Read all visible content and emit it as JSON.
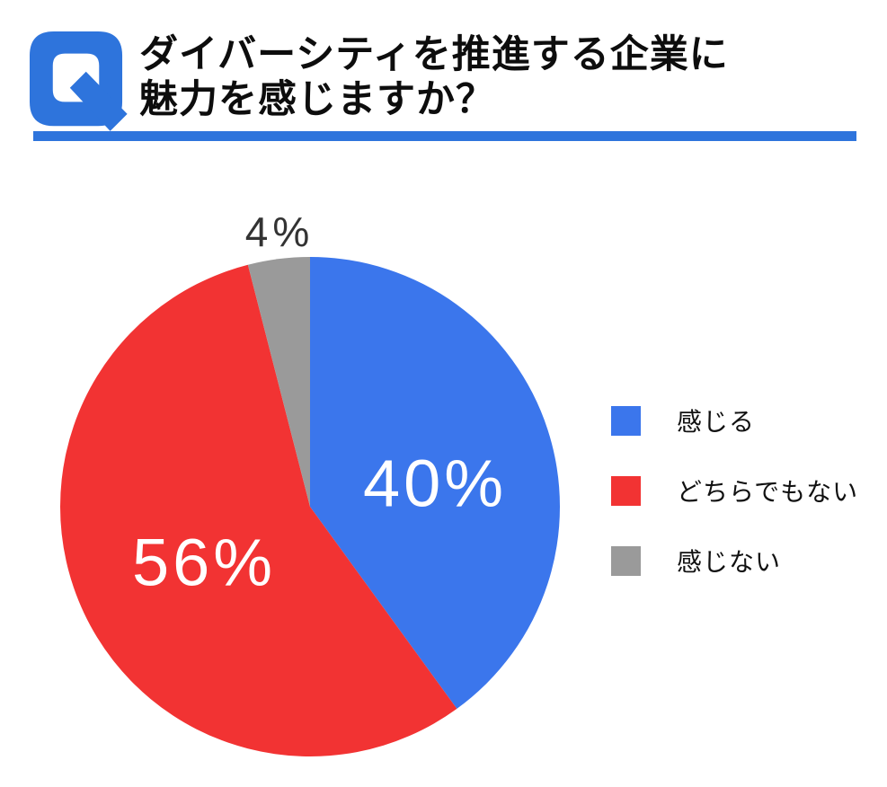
{
  "header": {
    "logo_glyph": "Q",
    "title_line1": "ダイバーシティを推進する企業に",
    "title_line2": "魅力を感じますか？",
    "accent_color": "#2e74dc"
  },
  "chart_data": {
    "type": "pie",
    "title": "ダイバーシティを推進する企業に魅力を感じますか？",
    "start_angle_deg": 0,
    "direction": "clockwise",
    "total_pct": 100,
    "slices": [
      {
        "label": "感じる",
        "value_pct": 40,
        "value_label": "40%",
        "color": "#3b76ec",
        "text_color": "#ffffff",
        "label_placement": "inside"
      },
      {
        "label": "どちらでもない",
        "value_pct": 56,
        "value_label": "56%",
        "color": "#f23333",
        "text_color": "#ffffff",
        "label_placement": "inside"
      },
      {
        "label": "感じない",
        "value_pct": 4,
        "value_label": "4%",
        "color": "#9a9a9a",
        "text_color": "#333333",
        "label_placement": "outside-top"
      }
    ],
    "legend_position": "right",
    "background": "#ffffff"
  }
}
